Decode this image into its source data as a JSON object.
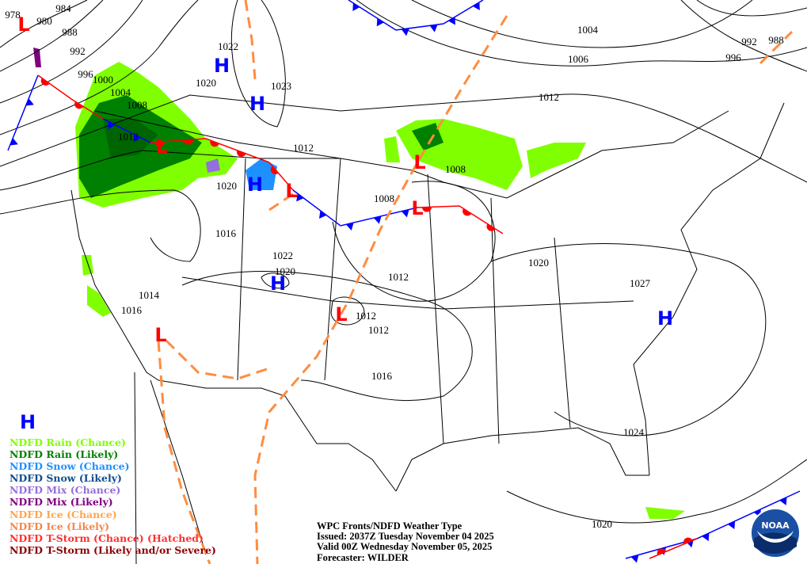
{
  "map": {
    "isobar_labels": [
      "978",
      "980",
      "984",
      "988",
      "992",
      "996",
      "1000",
      "1004",
      "1008",
      "1012",
      "1020",
      "1022",
      "1023",
      "1012",
      "1008",
      "1008",
      "1012",
      "1004",
      "1006",
      "992",
      "996",
      "988",
      "1020",
      "1016",
      "1022",
      "1020",
      "1012",
      "1012",
      "1012",
      "1016",
      "1014",
      "1016",
      "1020",
      "1027",
      "1024",
      "1020"
    ],
    "high_symbol": "H",
    "low_symbol": "L",
    "highs_count": 6,
    "lows_count": 7,
    "colors": {
      "high": "#0000ff",
      "low": "#ff0000",
      "cold_front": "#0000ff",
      "warm_front": "#ff0000",
      "trough": "#ff8c40",
      "rain_chance": "#80ff00",
      "rain_likely": "#008000"
    }
  },
  "legend": {
    "items": [
      {
        "label": "NDFD Rain (Chance)",
        "color": "#80ff00"
      },
      {
        "label": "NDFD Rain (Likely)",
        "color": "#008000"
      },
      {
        "label": "NDFD Snow (Chance)",
        "color": "#1e90ff"
      },
      {
        "label": "NDFD Snow (Likely)",
        "color": "#104e8b"
      },
      {
        "label": "NDFD Mix (Chance)",
        "color": "#9370db"
      },
      {
        "label": "NDFD Mix (Likely)",
        "color": "#800080"
      },
      {
        "label": "NDFD Ice (Chance)",
        "color": "#ffa54f"
      },
      {
        "label": "NDFD Ice (Likely)",
        "color": "#f4874b"
      },
      {
        "label": "NDFD T-Storm (Chance) (Hatched)",
        "color": "#ff3030"
      },
      {
        "label": "NDFD T-Storm (Likely and/or Severe)",
        "color": "#8b0000"
      }
    ]
  },
  "caption": {
    "title": "WPC Fronts/NDFD Weather Type",
    "issued": "Issued: 2037Z Tuesday November 04 2025",
    "valid": "Valid 00Z Wednesday November 05, 2025",
    "forecaster": "Forecaster: WILDER"
  },
  "logo": {
    "text": "NOAA"
  }
}
